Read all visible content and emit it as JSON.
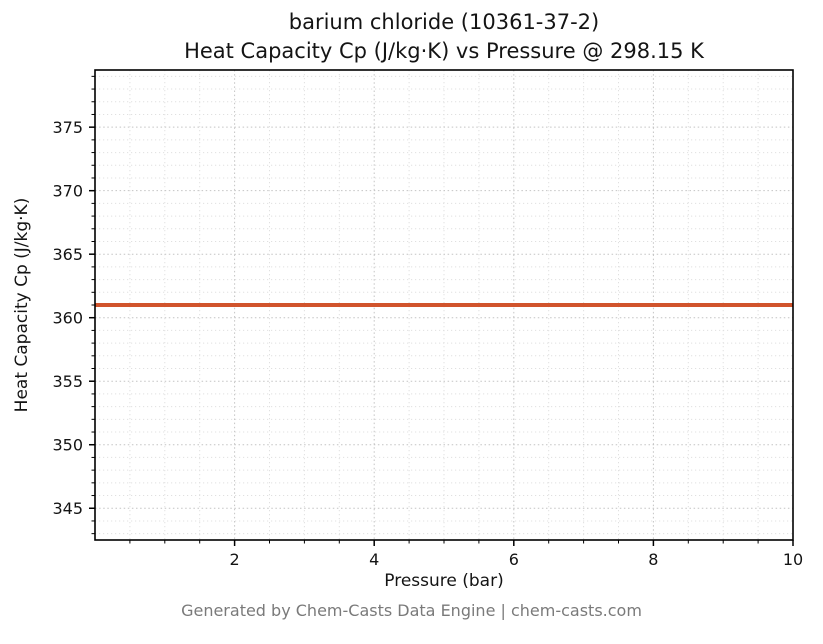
{
  "chart_data": {
    "type": "line",
    "title": "barium chloride (10361-37-2)",
    "subtitle": "Heat Capacity Cp (J/kg·K) vs Pressure @ 298.15 K",
    "xlabel": "Pressure (bar)",
    "ylabel": "Heat Capacity Cp (J/kg·K)",
    "xlim": [
      0,
      10
    ],
    "ylim": [
      342.5,
      379.5
    ],
    "xticks": [
      2,
      4,
      6,
      8,
      10
    ],
    "yticks": [
      345,
      350,
      355,
      360,
      365,
      370,
      375
    ],
    "grid": true,
    "legend": "none",
    "series": [
      {
        "name": "Heat Capacity Cp",
        "color": "#d1542c",
        "line_width": 4,
        "x": [
          0,
          10
        ],
        "y": [
          361,
          361
        ]
      }
    ]
  },
  "footer": {
    "caption": "Generated by Chem-Casts Data Engine | chem-casts.com"
  }
}
